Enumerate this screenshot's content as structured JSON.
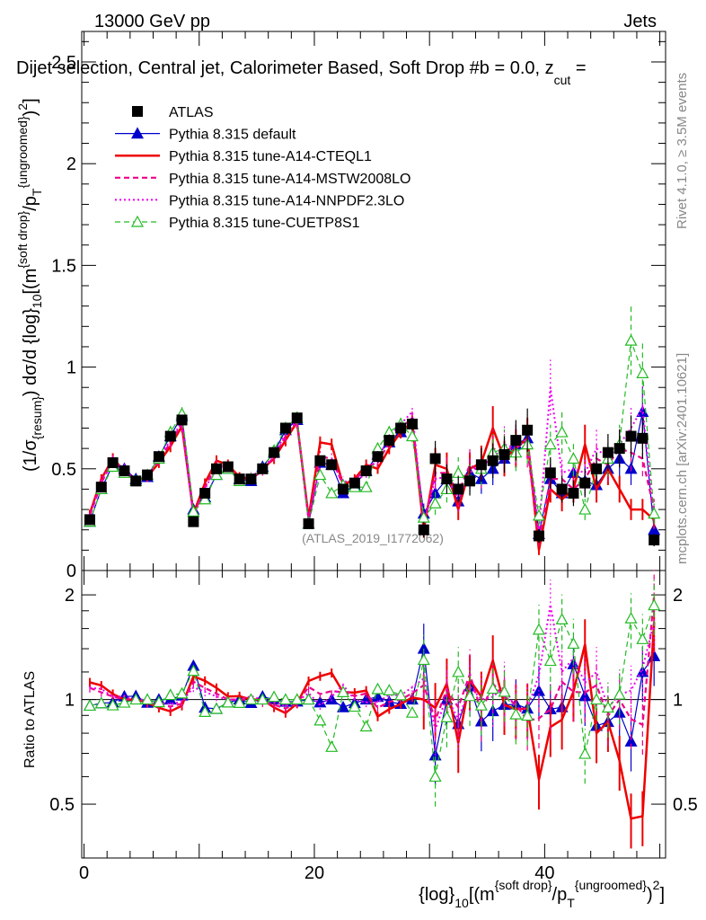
{
  "header": {
    "energy": "13000 GeV pp",
    "category": "Jets",
    "title": "Dijet selection, Central jet, Calorimeter Based, Soft Drop #b = 0.0, z",
    "title_sub": "cut",
    "title_end": " =",
    "rivet": "Rivet 4.1.0, ≥ 3.5M events",
    "mcplots": "mcplots.cern.ch [arXiv:2401.10621]",
    "analysis_id": "(ATLAS_2019_I1772062)"
  },
  "axes": {
    "main_ylabel": "(1/σ_{resum}) dσ/d {log}_{10}[(m^{soft drop}/p_T^{ungroomed})^2]",
    "ratio_ylabel": "Ratio to ATLAS",
    "xlabel": "{log}_{10}[(m^{soft drop}/p_T^{ungroomed})^2]",
    "main_yticks": [
      "0",
      "0.5",
      "1",
      "1.5",
      "2",
      "2.5"
    ],
    "ratio_yticks": [
      "0.5",
      "1",
      "2"
    ],
    "xticks": [
      "0",
      "20",
      "40"
    ]
  },
  "legend": [
    {
      "label": "ATLAS",
      "color": "#000000"
    },
    {
      "label": "Pythia 8.315 default",
      "color": "#0000cc"
    },
    {
      "label": "Pythia 8.315 tune-A14-CTEQL1",
      "color": "#ee0000"
    },
    {
      "label": "Pythia 8.315 tune-A14-MSTW2008LO",
      "color": "#ee0088"
    },
    {
      "label": "Pythia 8.315 tune-A14-NNPDF2.3LO",
      "color": "#ee00ee"
    },
    {
      "label": "Pythia 8.315 tune-CUETP8S1",
      "color": "#22bb22"
    }
  ],
  "chart_data": {
    "type": "line",
    "title": "Dijet selection, Central jet, Calorimeter Based, Soft Drop #b = 0.0, z_cut =",
    "xlabel": "{log}_{10}[(m^{soft drop}/p_T^{ungroomed})^2]",
    "ylabel": "(1/σ_{resum}) dσ/d {log}_{10}[(m^{soft drop}/p_T^{ungroomed})^2]",
    "xlim": [
      -0.2,
      50.5
    ],
    "ylim": [
      0,
      2.65
    ],
    "ratio_ylim": [
      0.35,
      2.35
    ],
    "x": [
      0.5,
      1.5,
      2.5,
      3.5,
      4.5,
      5.5,
      6.5,
      7.5,
      8.5,
      9.5,
      10.5,
      11.5,
      12.5,
      13.5,
      14.5,
      15.5,
      16.5,
      17.5,
      18.5,
      19.5,
      20.5,
      21.5,
      22.5,
      23.5,
      24.5,
      25.5,
      26.5,
      27.5,
      28.5,
      29.5,
      30.5,
      31.5,
      32.5,
      33.5,
      34.5,
      35.5,
      36.5,
      37.5,
      38.5,
      39.5,
      40.5,
      41.5,
      42.5,
      43.5,
      44.5,
      45.5,
      46.5,
      47.5,
      48.5,
      49.5
    ],
    "series": [
      {
        "name": "ATLAS",
        "values": [
          0.25,
          0.41,
          0.53,
          0.49,
          0.44,
          0.47,
          0.56,
          0.66,
          0.74,
          0.24,
          0.38,
          0.5,
          0.51,
          0.45,
          0.45,
          0.5,
          0.58,
          0.7,
          0.75,
          0.23,
          0.54,
          0.52,
          0.4,
          0.43,
          0.49,
          0.56,
          0.64,
          0.7,
          0.72,
          0.2,
          0.55,
          0.45,
          0.4,
          0.44,
          0.52,
          0.54,
          0.57,
          0.64,
          0.69,
          0.17,
          0.48,
          0.4,
          0.38,
          0.43,
          0.5,
          0.58,
          0.6,
          0.66,
          0.65,
          0.15
        ]
      },
      {
        "name": "Pythia 8.315 default",
        "values": [
          0.24,
          0.4,
          0.52,
          0.5,
          0.45,
          0.46,
          0.56,
          0.66,
          0.76,
          0.3,
          0.36,
          0.47,
          0.5,
          0.45,
          0.44,
          0.51,
          0.58,
          0.69,
          0.74,
          0.23,
          0.53,
          0.52,
          0.38,
          0.42,
          0.49,
          0.57,
          0.63,
          0.68,
          0.72,
          0.28,
          0.38,
          0.45,
          0.34,
          0.48,
          0.45,
          0.5,
          0.55,
          0.62,
          0.65,
          0.18,
          0.45,
          0.38,
          0.48,
          0.44,
          0.42,
          0.5,
          0.55,
          0.5,
          0.78,
          0.2
        ]
      },
      {
        "name": "Pythia 8.315 tune-A14-CTEQL1",
        "values": [
          0.28,
          0.45,
          0.55,
          0.49,
          0.44,
          0.46,
          0.53,
          0.61,
          0.71,
          0.28,
          0.43,
          0.54,
          0.52,
          0.46,
          0.45,
          0.5,
          0.55,
          0.64,
          0.73,
          0.26,
          0.63,
          0.62,
          0.42,
          0.45,
          0.52,
          0.5,
          0.6,
          0.68,
          0.73,
          0.2,
          0.52,
          0.5,
          0.3,
          0.5,
          0.53,
          0.7,
          0.55,
          0.6,
          0.65,
          0.1,
          0.4,
          0.35,
          0.4,
          0.62,
          0.4,
          0.5,
          0.4,
          0.3,
          0.3,
          0.25
        ]
      },
      {
        "name": "Pythia 8.315 tune-A14-MSTW2008LO",
        "values": [
          0.27,
          0.43,
          0.54,
          0.49,
          0.44,
          0.46,
          0.54,
          0.63,
          0.72,
          0.27,
          0.41,
          0.52,
          0.51,
          0.45,
          0.45,
          0.49,
          0.56,
          0.66,
          0.73,
          0.25,
          0.56,
          0.55,
          0.42,
          0.44,
          0.51,
          0.53,
          0.63,
          0.7,
          0.75,
          0.22,
          0.48,
          0.48,
          0.38,
          0.52,
          0.48,
          0.6,
          0.58,
          0.62,
          0.6,
          0.15,
          0.45,
          0.45,
          0.4,
          0.45,
          0.55,
          0.52,
          0.6,
          0.58,
          0.55,
          0.3
        ]
      },
      {
        "name": "Pythia 8.315 tune-A14-NNPDF2.3LO",
        "values": [
          0.27,
          0.44,
          0.54,
          0.5,
          0.44,
          0.47,
          0.55,
          0.64,
          0.73,
          0.26,
          0.4,
          0.51,
          0.51,
          0.45,
          0.46,
          0.5,
          0.57,
          0.67,
          0.74,
          0.24,
          0.52,
          0.53,
          0.44,
          0.43,
          0.48,
          0.55,
          0.66,
          0.72,
          0.78,
          0.23,
          0.45,
          0.46,
          0.35,
          0.48,
          0.52,
          0.55,
          0.62,
          0.6,
          0.65,
          0.2,
          0.9,
          0.48,
          0.5,
          0.48,
          0.6,
          0.55,
          0.62,
          0.7,
          0.8,
          0.25
        ]
      },
      {
        "name": "Pythia 8.315 tune-CUETP8S1",
        "values": [
          0.24,
          0.4,
          0.51,
          0.48,
          0.44,
          0.47,
          0.55,
          0.68,
          0.77,
          0.29,
          0.35,
          0.47,
          0.5,
          0.44,
          0.45,
          0.5,
          0.59,
          0.7,
          0.75,
          0.23,
          0.47,
          0.38,
          0.42,
          0.41,
          0.41,
          0.6,
          0.68,
          0.72,
          0.66,
          0.26,
          0.33,
          0.4,
          0.48,
          0.45,
          0.5,
          0.58,
          0.6,
          0.58,
          0.62,
          0.27,
          0.62,
          0.68,
          0.55,
          0.3,
          0.5,
          0.55,
          0.62,
          1.13,
          0.97,
          0.28
        ]
      }
    ]
  }
}
